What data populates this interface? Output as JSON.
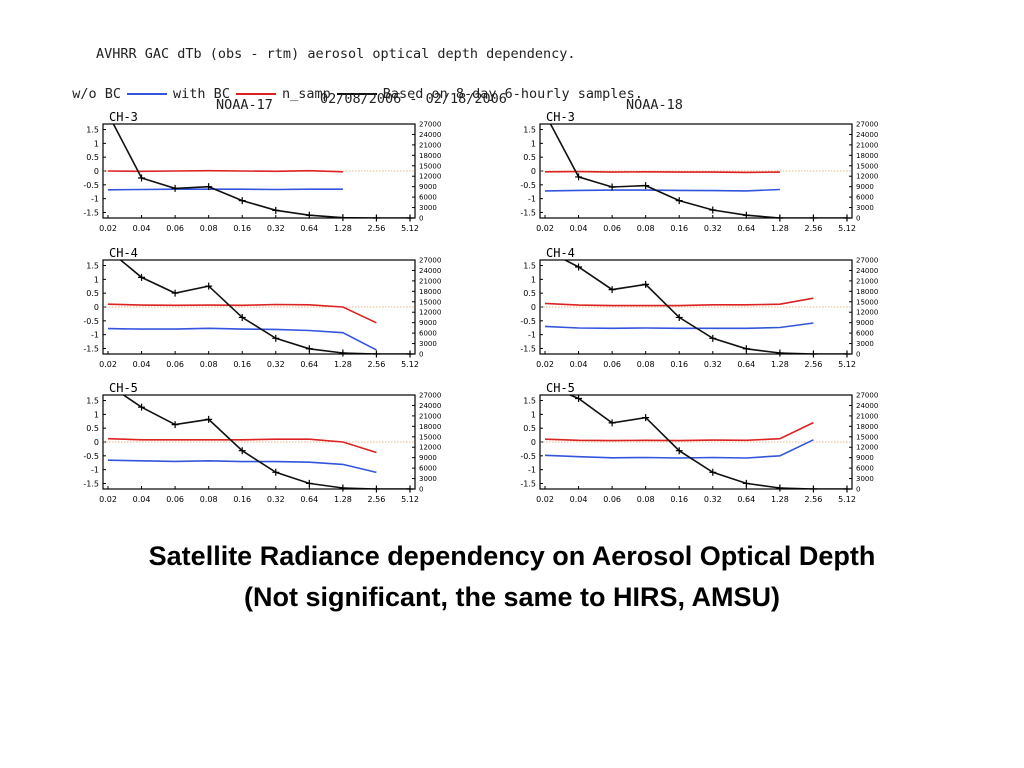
{
  "header": {
    "title": "AVHRR GAC dTb (obs - rtm) aerosol optical depth dependency.",
    "legend": {
      "without_bc": "w/o BC",
      "with_bc": "with BC",
      "n_samp": "n_samp",
      "note": "Based on 8-day 6-hourly samples."
    },
    "satellite_left": "NOAA-17",
    "satellite_right": "NOAA-18",
    "date_range": "02/08/2006 - 02/18/2006"
  },
  "colors": {
    "without_bc": "#3355dd",
    "with_bc": "#dd2222",
    "n_samp": "#111111",
    "zero_line": "#e0a060"
  },
  "chart_data": [
    {
      "type": "line",
      "satellite": "NOAA-17",
      "title": "CH-3",
      "x": [
        "0.02",
        "0.04",
        "0.06",
        "0.08",
        "0.16",
        "0.32",
        "0.64",
        "1.28",
        "2.56",
        "5.12"
      ],
      "ylim": [
        -1.7,
        1.7
      ],
      "y_ticks": [
        "1.5",
        "1",
        "0.5",
        "0",
        "-0.5",
        "-1",
        "-1.5"
      ],
      "y2lim": [
        0,
        27000
      ],
      "y2_ticks": [
        "27000",
        "24000",
        "21000",
        "18000",
        "15000",
        "12000",
        "9000",
        "6000",
        "3000",
        "0"
      ],
      "series": [
        {
          "name": "w/o BC",
          "values": [
            -0.68,
            -0.67,
            -0.66,
            -0.66,
            -0.66,
            -0.67,
            -0.66,
            -0.66,
            null,
            null
          ]
        },
        {
          "name": "with BC",
          "values": [
            0.0,
            -0.01,
            0.0,
            0.01,
            0.0,
            -0.01,
            0.01,
            -0.03,
            null,
            null
          ]
        },
        {
          "name": "n_samp",
          "values": [
            30000,
            11500,
            8500,
            9000,
            5000,
            2200,
            800,
            100,
            0,
            0
          ]
        }
      ]
    },
    {
      "type": "line",
      "satellite": "NOAA-18",
      "title": "CH-3",
      "x": [
        "0.02",
        "0.04",
        "0.06",
        "0.08",
        "0.16",
        "0.32",
        "0.64",
        "1.28",
        "2.56",
        "5.12"
      ],
      "ylim": [
        -1.7,
        1.7
      ],
      "y_ticks": [
        "1.5",
        "1",
        "0.5",
        "0",
        "-0.5",
        "-1",
        "-1.5"
      ],
      "y2lim": [
        0,
        27000
      ],
      "y2_ticks": [
        "27000",
        "24000",
        "21000",
        "18000",
        "15000",
        "12000",
        "9000",
        "6000",
        "3000",
        "0"
      ],
      "series": [
        {
          "name": "w/o BC",
          "values": [
            -0.72,
            -0.7,
            -0.69,
            -0.69,
            -0.7,
            -0.71,
            -0.72,
            -0.67,
            null,
            null
          ]
        },
        {
          "name": "with BC",
          "values": [
            -0.03,
            -0.02,
            -0.04,
            -0.03,
            -0.04,
            -0.04,
            -0.05,
            -0.04,
            null,
            null
          ]
        },
        {
          "name": "n_samp",
          "values": [
            30000,
            11800,
            8900,
            9300,
            5000,
            2300,
            800,
            0,
            0,
            0
          ]
        }
      ]
    },
    {
      "type": "line",
      "satellite": "NOAA-17",
      "title": "CH-4",
      "x": [
        "0.02",
        "0.04",
        "0.06",
        "0.08",
        "0.16",
        "0.32",
        "0.64",
        "1.28",
        "2.56",
        "5.12"
      ],
      "ylim": [
        -1.7,
        1.7
      ],
      "y_ticks": [
        "1.5",
        "1",
        "0.5",
        "0",
        "-0.5",
        "-1",
        "-1.5"
      ],
      "y2lim": [
        0,
        27000
      ],
      "y2_ticks": [
        "27000",
        "24000",
        "21000",
        "18000",
        "15000",
        "12000",
        "9000",
        "6000",
        "3000",
        "0"
      ],
      "series": [
        {
          "name": "w/o BC",
          "values": [
            -0.78,
            -0.8,
            -0.8,
            -0.77,
            -0.8,
            -0.81,
            -0.85,
            -0.93,
            -1.55,
            null
          ]
        },
        {
          "name": "with BC",
          "values": [
            0.1,
            0.07,
            0.06,
            0.07,
            0.06,
            0.09,
            0.08,
            0.0,
            -0.57,
            null
          ]
        },
        {
          "name": "n_samp",
          "values": [
            30000,
            22000,
            17500,
            19500,
            10500,
            4500,
            1500,
            300,
            0,
            0
          ]
        }
      ]
    },
    {
      "type": "line",
      "satellite": "NOAA-18",
      "title": "CH-4",
      "x": [
        "0.02",
        "0.04",
        "0.06",
        "0.08",
        "0.16",
        "0.32",
        "0.64",
        "1.28",
        "2.56",
        "5.12"
      ],
      "ylim": [
        -1.7,
        1.7
      ],
      "y_ticks": [
        "1.5",
        "1",
        "0.5",
        "0",
        "-0.5",
        "-1",
        "-1.5"
      ],
      "y2lim": [
        0,
        27000
      ],
      "y2_ticks": [
        "27000",
        "24000",
        "21000",
        "18000",
        "15000",
        "12000",
        "9000",
        "6000",
        "3000",
        "0"
      ],
      "series": [
        {
          "name": "w/o BC",
          "values": [
            -0.7,
            -0.76,
            -0.77,
            -0.76,
            -0.77,
            -0.77,
            -0.77,
            -0.74,
            -0.58,
            null
          ]
        },
        {
          "name": "with BC",
          "values": [
            0.13,
            0.07,
            0.05,
            0.05,
            0.05,
            0.08,
            0.08,
            0.1,
            0.32,
            null
          ]
        },
        {
          "name": "n_samp",
          "values": [
            30000,
            25000,
            18500,
            20000,
            10500,
            4500,
            1500,
            300,
            0,
            0
          ]
        }
      ]
    },
    {
      "type": "line",
      "satellite": "NOAA-17",
      "title": "CH-5",
      "x": [
        "0.02",
        "0.04",
        "0.06",
        "0.08",
        "0.16",
        "0.32",
        "0.64",
        "1.28",
        "2.56",
        "5.12"
      ],
      "ylim": [
        -1.7,
        1.7
      ],
      "y_ticks": [
        "1.5",
        "1",
        "0.5",
        "0",
        "-0.5",
        "-1",
        "-1.5"
      ],
      "y2lim": [
        0,
        27000
      ],
      "y2_ticks": [
        "27000",
        "24000",
        "21000",
        "18000",
        "15000",
        "12000",
        "9000",
        "6000",
        "3000",
        "0"
      ],
      "series": [
        {
          "name": "w/o BC",
          "values": [
            -0.66,
            -0.68,
            -0.7,
            -0.68,
            -0.71,
            -0.71,
            -0.73,
            -0.81,
            -1.1,
            null
          ]
        },
        {
          "name": "with BC",
          "values": [
            0.12,
            0.08,
            0.08,
            0.08,
            0.08,
            0.1,
            0.1,
            0.0,
            -0.38,
            null
          ]
        },
        {
          "name": "n_samp",
          "values": [
            30000,
            23500,
            18500,
            20000,
            11000,
            4800,
            1600,
            300,
            0,
            0
          ]
        }
      ]
    },
    {
      "type": "line",
      "satellite": "NOAA-18",
      "title": "CH-5",
      "x": [
        "0.02",
        "0.04",
        "0.06",
        "0.08",
        "0.16",
        "0.32",
        "0.64",
        "1.28",
        "2.56",
        "5.12"
      ],
      "ylim": [
        -1.7,
        1.7
      ],
      "y_ticks": [
        "1.5",
        "1",
        "0.5",
        "0",
        "-0.5",
        "-1",
        "-1.5"
      ],
      "y2lim": [
        0,
        27000
      ],
      "y2_ticks": [
        "27000",
        "24000",
        "21000",
        "18000",
        "15000",
        "12000",
        "9000",
        "6000",
        "3000",
        "0"
      ],
      "series": [
        {
          "name": "w/o BC",
          "values": [
            -0.48,
            -0.53,
            -0.57,
            -0.56,
            -0.58,
            -0.56,
            -0.58,
            -0.5,
            0.08,
            null
          ]
        },
        {
          "name": "with BC",
          "values": [
            0.1,
            0.06,
            0.05,
            0.06,
            0.05,
            0.07,
            0.06,
            0.12,
            0.7,
            null
          ]
        },
        {
          "name": "n_samp",
          "values": [
            30000,
            26000,
            19000,
            20500,
            11000,
            4800,
            1600,
            300,
            0,
            0
          ]
        }
      ]
    }
  ],
  "caption": {
    "line1": "Satellite Radiance dependency on Aerosol Optical Depth",
    "line2": "(Not significant, the same to HIRS, AMSU)"
  }
}
